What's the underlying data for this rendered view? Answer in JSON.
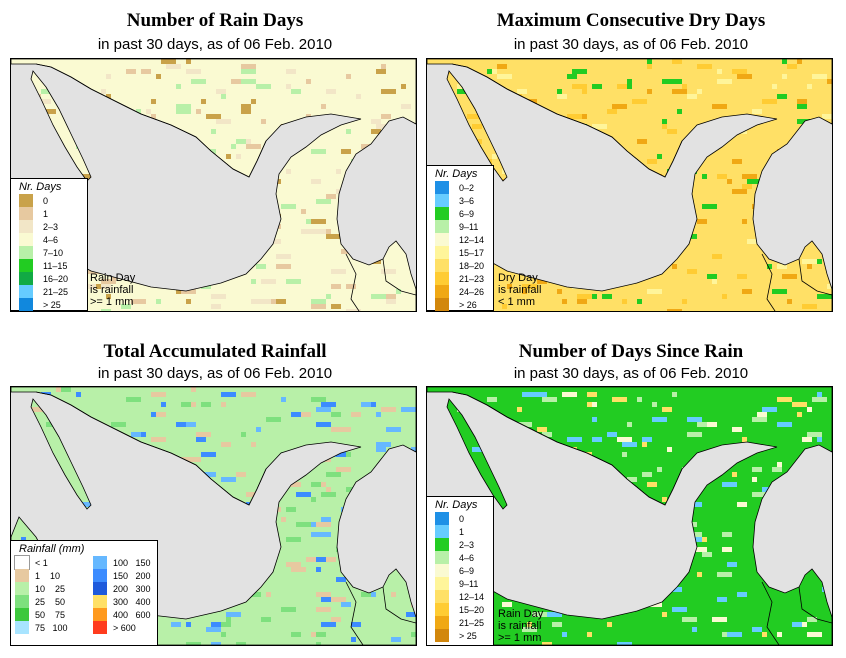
{
  "panels": [
    {
      "title": "Number of Rain Days",
      "subtitle": "in past 30 days, as of  06 Feb. 2010",
      "legend_title": "Nr. Days",
      "legend": [
        {
          "label": "0",
          "color": "#c9a24a"
        },
        {
          "label": "1",
          "color": "#e7c9a0"
        },
        {
          "label": "2–3",
          "color": "#f2e6c7"
        },
        {
          "label": "4–6",
          "color": "#fafad2"
        },
        {
          "label": "7–10",
          "color": "#b8f0a8"
        },
        {
          "label": "11–15",
          "color": "#22cc22"
        },
        {
          "label": "16–20",
          "color": "#11aa44"
        },
        {
          "label": "21–25",
          "color": "#66ccff"
        },
        {
          "label": "> 25",
          "color": "#1188dd"
        }
      ],
      "note": "Rain Day\nis rainfall\n>= 1 mm",
      "base_color": "#fafad2",
      "patch_colors": [
        "#e7c9a0",
        "#b8f0a8",
        "#f2e6c7",
        "#c9a24a"
      ]
    },
    {
      "title": "Maximum Consecutive Dry Days",
      "subtitle": "in past 30 days, as of  06 Feb. 2010",
      "legend_title": "Nr. Days",
      "legend": [
        {
          "label": "0–2",
          "color": "#1e90e6"
        },
        {
          "label": "3–6",
          "color": "#66ccff"
        },
        {
          "label": "6–9",
          "color": "#22cc22"
        },
        {
          "label": "9–11",
          "color": "#b8f0a8"
        },
        {
          "label": "12–14",
          "color": "#fafad2"
        },
        {
          "label": "15–17",
          "color": "#fff59a"
        },
        {
          "label": "18–20",
          "color": "#ffe066"
        },
        {
          "label": "21–23",
          "color": "#ffcc33"
        },
        {
          "label": "24–26",
          "color": "#f0a814"
        },
        {
          "label": "> 26",
          "color": "#d2870c"
        }
      ],
      "note": "Dry Day\nis rainfall\n< 1 mm",
      "base_color": "#ffe066",
      "patch_colors": [
        "#ffcc33",
        "#f0a814",
        "#fff59a",
        "#22cc22"
      ]
    },
    {
      "title": "Total Accumulated Rainfall",
      "subtitle": "in past 30 days, as of  06 Feb. 2010",
      "legend_title": "Rainfall (mm)",
      "legend": [
        {
          "label": "< 1",
          "color": "#ffffff"
        },
        {
          "label": "1    10",
          "color": "#e7c9a0"
        },
        {
          "label": "10    25",
          "color": "#b8f0a8"
        },
        {
          "label": "25    50",
          "color": "#7ee07e"
        },
        {
          "label": "50    75",
          "color": "#3cc83c"
        },
        {
          "label": "75   100",
          "color": "#a8e4ff"
        },
        {
          "label": "100   150",
          "color": "#66b8ff"
        },
        {
          "label": "150   200",
          "color": "#3c8cff"
        },
        {
          "label": "200   300",
          "color": "#1e5adc"
        },
        {
          "label": "300   400",
          "color": "#ffe066"
        },
        {
          "label": "400   600",
          "color": "#ff9a1e"
        },
        {
          "label": "> 600",
          "color": "#ff3c1e"
        }
      ],
      "note": "",
      "base_color": "#b8f0a8",
      "patch_colors": [
        "#66b8ff",
        "#7ee07e",
        "#e7c9a0",
        "#3c8cff"
      ]
    },
    {
      "title": "Number of Days Since Rain",
      "subtitle": "in past 30 days, as of  06 Feb. 2010",
      "legend_title": "Nr. Days",
      "legend": [
        {
          "label": "0",
          "color": "#1e90e6"
        },
        {
          "label": "1",
          "color": "#66ccff"
        },
        {
          "label": "2–3",
          "color": "#22cc22"
        },
        {
          "label": "4–6",
          "color": "#b8f0a8"
        },
        {
          "label": "6–9",
          "color": "#fafad2"
        },
        {
          "label": "9–11",
          "color": "#fff59a"
        },
        {
          "label": "12–14",
          "color": "#ffe066"
        },
        {
          "label": "15–20",
          "color": "#ffcc33"
        },
        {
          "label": "21–25",
          "color": "#f0a814"
        },
        {
          "label": "> 25",
          "color": "#d2870c"
        }
      ],
      "note": "Rain Day\nis rainfall\n>= 1 mm",
      "base_color": "#22cc22",
      "patch_colors": [
        "#66ccff",
        "#fafad2",
        "#ffe066",
        "#b8f0a8"
      ]
    }
  ]
}
